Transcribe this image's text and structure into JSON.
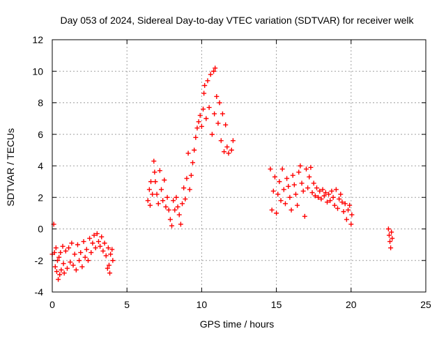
{
  "chart_data": {
    "type": "scatter",
    "title": "Day 053 of 2024, Sidereal Day-to-day VTEC variation (SDTVAR) for receiver welk",
    "xlabel": "GPS time / hours",
    "ylabel": "SDTVAR / TECUs",
    "xlim": [
      0,
      25
    ],
    "ylim": [
      -4,
      12
    ],
    "x_ticks": [
      0,
      5,
      10,
      15,
      20,
      25
    ],
    "y_ticks": [
      -4,
      -2,
      0,
      2,
      4,
      6,
      8,
      10,
      12
    ],
    "x_tick_labels": [
      "0",
      "5",
      "10",
      "15",
      "20",
      "25"
    ],
    "y_tick_labels": [
      "-4",
      "-2",
      "0",
      "2",
      "4",
      "6",
      "8",
      "10",
      "12"
    ],
    "grid": true,
    "marker": "+",
    "series": [
      {
        "name": "SDTVAR",
        "color": "#ff0000",
        "points": [
          [
            0.0,
            -1.6
          ],
          [
            0.1,
            0.3
          ],
          [
            0.15,
            -1.5
          ],
          [
            0.2,
            -2.4
          ],
          [
            0.25,
            -1.2
          ],
          [
            0.3,
            -2.7
          ],
          [
            0.35,
            -2.0
          ],
          [
            0.4,
            -3.2
          ],
          [
            0.45,
            -1.8
          ],
          [
            0.5,
            -2.9
          ],
          [
            0.55,
            -1.5
          ],
          [
            0.6,
            -2.6
          ],
          [
            0.7,
            -1.1
          ],
          [
            0.75,
            -2.2
          ],
          [
            0.8,
            -2.8
          ],
          [
            0.9,
            -1.4
          ],
          [
            1.0,
            -2.5
          ],
          [
            1.1,
            -1.2
          ],
          [
            1.2,
            -2.1
          ],
          [
            1.3,
            -0.9
          ],
          [
            1.4,
            -2.3
          ],
          [
            1.5,
            -1.6
          ],
          [
            1.6,
            -2.6
          ],
          [
            1.7,
            -1.0
          ],
          [
            1.8,
            -2.0
          ],
          [
            1.9,
            -1.5
          ],
          [
            2.0,
            -2.4
          ],
          [
            2.1,
            -0.8
          ],
          [
            2.2,
            -1.8
          ],
          [
            2.3,
            -1.3
          ],
          [
            2.4,
            -2.0
          ],
          [
            2.5,
            -0.6
          ],
          [
            2.6,
            -1.5
          ],
          [
            2.7,
            -0.9
          ],
          [
            2.8,
            -0.4
          ],
          [
            2.9,
            -1.2
          ],
          [
            3.0,
            -0.3
          ],
          [
            3.1,
            -0.8
          ],
          [
            3.2,
            -1.1
          ],
          [
            3.3,
            -0.5
          ],
          [
            3.4,
            -1.4
          ],
          [
            3.5,
            -0.9
          ],
          [
            3.6,
            -1.7
          ],
          [
            3.7,
            -2.5
          ],
          [
            3.75,
            -1.2
          ],
          [
            3.8,
            -2.3
          ],
          [
            3.85,
            -2.8
          ],
          [
            3.9,
            -1.6
          ],
          [
            4.0,
            -1.3
          ],
          [
            4.05,
            -2.0
          ],
          [
            6.4,
            1.8
          ],
          [
            6.5,
            2.5
          ],
          [
            6.55,
            1.5
          ],
          [
            6.6,
            3.0
          ],
          [
            6.7,
            2.2
          ],
          [
            6.8,
            4.3
          ],
          [
            6.85,
            3.6
          ],
          [
            6.9,
            3.0
          ],
          [
            7.0,
            2.2
          ],
          [
            7.1,
            1.6
          ],
          [
            7.2,
            3.7
          ],
          [
            7.3,
            2.5
          ],
          [
            7.4,
            1.8
          ],
          [
            7.5,
            3.1
          ],
          [
            7.6,
            1.4
          ],
          [
            7.7,
            2.0
          ],
          [
            7.8,
            1.2
          ],
          [
            7.9,
            0.6
          ],
          [
            8.0,
            0.2
          ],
          [
            8.1,
            1.8
          ],
          [
            8.2,
            1.2
          ],
          [
            8.3,
            2.0
          ],
          [
            8.4,
            1.4
          ],
          [
            8.5,
            0.9
          ],
          [
            8.6,
            0.3
          ],
          [
            8.7,
            1.6
          ],
          [
            8.8,
            2.6
          ],
          [
            8.9,
            1.9
          ],
          [
            9.0,
            3.2
          ],
          [
            9.1,
            4.8
          ],
          [
            9.2,
            2.5
          ],
          [
            9.3,
            3.4
          ],
          [
            9.4,
            4.2
          ],
          [
            9.5,
            5.0
          ],
          [
            9.6,
            5.8
          ],
          [
            9.7,
            6.4
          ],
          [
            9.8,
            6.8
          ],
          [
            9.9,
            7.2
          ],
          [
            10.0,
            6.5
          ],
          [
            10.1,
            7.6
          ],
          [
            10.15,
            8.6
          ],
          [
            10.2,
            9.1
          ],
          [
            10.3,
            7.0
          ],
          [
            10.4,
            9.4
          ],
          [
            10.5,
            7.7
          ],
          [
            10.6,
            9.8
          ],
          [
            10.7,
            6.0
          ],
          [
            10.8,
            10.0
          ],
          [
            10.85,
            7.3
          ],
          [
            10.9,
            10.2
          ],
          [
            11.0,
            8.4
          ],
          [
            11.1,
            6.7
          ],
          [
            11.2,
            8.0
          ],
          [
            11.3,
            5.6
          ],
          [
            11.4,
            7.3
          ],
          [
            11.5,
            4.9
          ],
          [
            11.6,
            6.6
          ],
          [
            11.7,
            5.2
          ],
          [
            11.8,
            4.8
          ],
          [
            12.0,
            5.0
          ],
          [
            12.1,
            5.6
          ],
          [
            14.6,
            3.8
          ],
          [
            14.7,
            1.2
          ],
          [
            14.8,
            2.4
          ],
          [
            14.9,
            3.3
          ],
          [
            15.0,
            1.0
          ],
          [
            15.1,
            2.2
          ],
          [
            15.2,
            3.0
          ],
          [
            15.3,
            1.8
          ],
          [
            15.4,
            3.8
          ],
          [
            15.5,
            2.5
          ],
          [
            15.6,
            1.6
          ],
          [
            15.7,
            3.2
          ],
          [
            15.8,
            2.7
          ],
          [
            15.9,
            2.0
          ],
          [
            16.0,
            1.2
          ],
          [
            16.1,
            3.4
          ],
          [
            16.2,
            2.8
          ],
          [
            16.3,
            2.2
          ],
          [
            16.4,
            1.5
          ],
          [
            16.5,
            3.6
          ],
          [
            16.6,
            4.0
          ],
          [
            16.7,
            2.9
          ],
          [
            16.8,
            2.4
          ],
          [
            16.9,
            0.8
          ],
          [
            17.0,
            3.8
          ],
          [
            17.1,
            2.6
          ],
          [
            17.2,
            3.3
          ],
          [
            17.3,
            3.9
          ],
          [
            17.4,
            2.3
          ],
          [
            17.5,
            2.9
          ],
          [
            17.6,
            2.1
          ],
          [
            17.7,
            2.6
          ],
          [
            17.8,
            2.0
          ],
          [
            17.9,
            2.4
          ],
          [
            18.0,
            1.9
          ],
          [
            18.1,
            2.5
          ],
          [
            18.2,
            2.1
          ],
          [
            18.3,
            2.3
          ],
          [
            18.4,
            1.7
          ],
          [
            18.5,
            2.2
          ],
          [
            18.6,
            1.8
          ],
          [
            18.7,
            2.4
          ],
          [
            18.8,
            2.0
          ],
          [
            18.9,
            1.5
          ],
          [
            19.0,
            2.5
          ],
          [
            19.1,
            1.3
          ],
          [
            19.2,
            1.9
          ],
          [
            19.3,
            2.2
          ],
          [
            19.4,
            1.7
          ],
          [
            19.5,
            1.1
          ],
          [
            19.6,
            1.6
          ],
          [
            19.7,
            0.6
          ],
          [
            19.8,
            1.2
          ],
          [
            19.9,
            1.5
          ],
          [
            20.0,
            0.3
          ],
          [
            20.05,
            0.9
          ],
          [
            22.5,
            0.0
          ],
          [
            22.55,
            -0.4
          ],
          [
            22.6,
            -0.8
          ],
          [
            22.65,
            -1.2
          ],
          [
            22.7,
            -0.2
          ],
          [
            22.75,
            -0.6
          ]
        ]
      }
    ]
  }
}
